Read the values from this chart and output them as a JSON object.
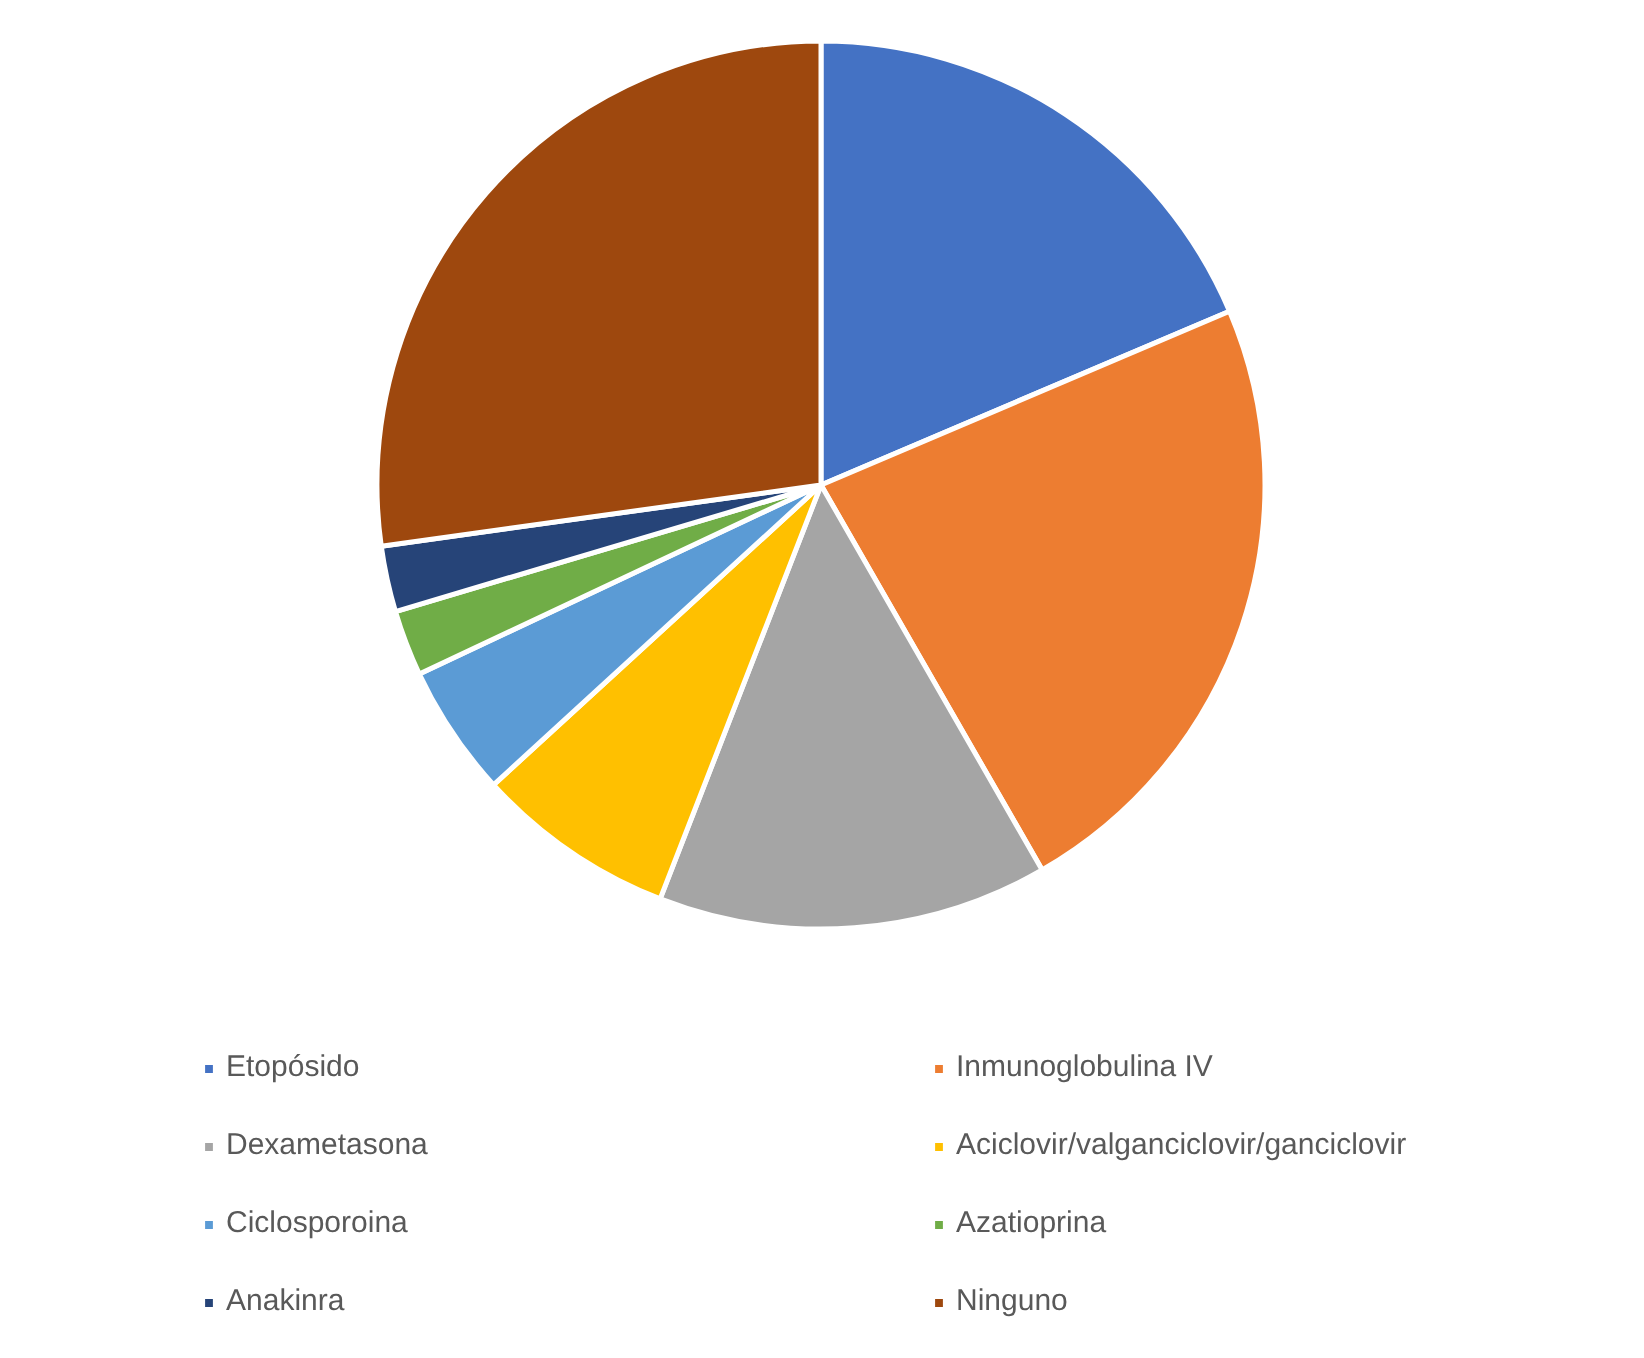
{
  "chart_data": {
    "type": "pie",
    "categories": [
      "Etopósido",
      "Inmunoglobulina IV",
      "Dexametasona",
      "Aciclovir/valganciclovir/ganciclovir",
      "Ciclosporoina",
      "Azatioprina",
      "Anakinra",
      "Ninguno"
    ],
    "values": [
      18.6,
      23.1,
      14.2,
      7.3,
      4.8,
      2.4,
      2.4,
      27.2
    ],
    "colors": [
      "#4472c4",
      "#ed7d31",
      "#a5a5a5",
      "#ffc000",
      "#5b9bd5",
      "#70ad47",
      "#264478",
      "#9e480e"
    ],
    "legend": "bottom"
  }
}
